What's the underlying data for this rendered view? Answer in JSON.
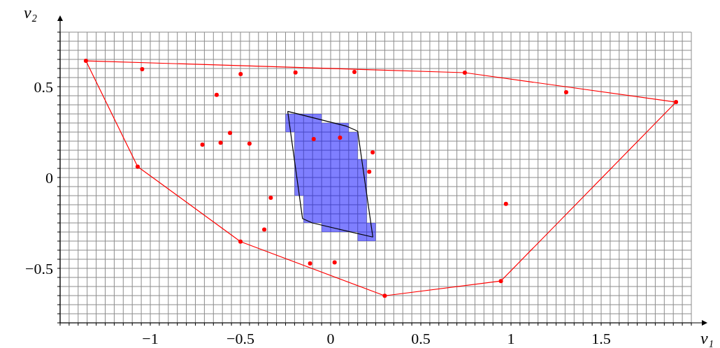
{
  "chart_data": {
    "type": "scatter",
    "xlabel": "v₁",
    "ylabel": "v₂",
    "xlim": [
      -1.5,
      2.0
    ],
    "ylim": [
      -0.8,
      0.8
    ],
    "grid": true,
    "xticks": [
      {
        "value": -1.5,
        "label": null
      },
      {
        "value": -1.45,
        "label": null
      },
      {
        "value": -1.4,
        "label": null
      },
      {
        "value": -1.35,
        "label": null
      },
      {
        "value": -1.3,
        "label": null
      },
      {
        "value": -1.25,
        "label": null
      },
      {
        "value": -1.2,
        "label": null
      },
      {
        "value": -1.15,
        "label": null
      },
      {
        "value": -1.1,
        "label": null
      },
      {
        "value": -1.05,
        "label": null
      },
      {
        "value": -1,
        "label": "−1"
      },
      {
        "value": -0.95,
        "label": null
      },
      {
        "value": -0.9,
        "label": null
      },
      {
        "value": -0.85,
        "label": null
      },
      {
        "value": -0.8,
        "label": null
      },
      {
        "value": -0.75,
        "label": null
      },
      {
        "value": -0.7,
        "label": null
      },
      {
        "value": -0.65,
        "label": null
      },
      {
        "value": -0.6,
        "label": null
      },
      {
        "value": -0.55,
        "label": null
      },
      {
        "value": -0.5,
        "label": "−0.5"
      },
      {
        "value": -0.45,
        "label": null
      },
      {
        "value": -0.4,
        "label": null
      },
      {
        "value": -0.35,
        "label": null
      },
      {
        "value": -0.3,
        "label": null
      },
      {
        "value": -0.25,
        "label": null
      },
      {
        "value": -0.2,
        "label": null
      },
      {
        "value": -0.15,
        "label": null
      },
      {
        "value": -0.1,
        "label": null
      },
      {
        "value": -0.05,
        "label": null
      },
      0,
      {
        "value": 0.05,
        "label": null
      },
      {
        "value": 0.1,
        "label": null
      },
      {
        "value": 0.15,
        "label": null
      },
      {
        "value": 0.2,
        "label": null
      },
      {
        "value": 0.25,
        "label": null
      },
      {
        "value": 0.3,
        "label": null
      },
      {
        "value": 0.35,
        "label": null
      },
      {
        "value": 0.4,
        "label": null
      },
      {
        "value": 0.45,
        "label": null
      },
      0.5,
      {
        "value": 0.55,
        "label": null
      },
      {
        "value": 0.6,
        "label": null
      },
      {
        "value": 0.65,
        "label": null
      },
      {
        "value": 0.7,
        "label": null
      },
      {
        "value": 0.75,
        "label": null
      },
      {
        "value": 0.8,
        "label": null
      },
      {
        "value": 0.85,
        "label": null
      },
      {
        "value": 0.9,
        "label": null
      },
      {
        "value": 0.95,
        "label": null
      },
      1,
      {
        "value": 1.05,
        "label": null
      },
      {
        "value": 1.1,
        "label": null
      },
      {
        "value": 1.15,
        "label": null
      },
      {
        "value": 1.2,
        "label": null
      },
      {
        "value": 1.25,
        "label": null
      },
      {
        "value": 1.3,
        "label": null
      },
      {
        "value": 1.35,
        "label": null
      },
      {
        "value": 1.4,
        "label": null
      },
      {
        "value": 1.45,
        "label": null
      },
      1.5,
      {
        "value": 1.55,
        "label": null
      },
      {
        "value": 1.6,
        "label": null
      },
      {
        "value": 1.65,
        "label": null
      },
      {
        "value": 1.7,
        "label": null
      },
      {
        "value": 1.75,
        "label": null
      },
      {
        "value": 1.8,
        "label": null
      },
      {
        "value": 1.85,
        "label": null
      },
      {
        "value": 1.9,
        "label": null
      },
      {
        "value": 1.95,
        "label": null
      },
      {
        "value": 2.0,
        "label": null
      }
    ],
    "yticks": [
      {
        "value": -0.8,
        "label": null
      },
      {
        "value": -0.75,
        "label": null
      },
      {
        "value": -0.7,
        "label": null
      },
      {
        "value": -0.65,
        "label": null
      },
      {
        "value": -0.6,
        "label": null
      },
      {
        "value": -0.55,
        "label": null
      },
      {
        "value": -0.5,
        "label": "−0.5"
      },
      {
        "value": -0.45,
        "label": null
      },
      {
        "value": -0.4,
        "label": null
      },
      {
        "value": -0.35,
        "label": null
      },
      {
        "value": -0.3,
        "label": null
      },
      {
        "value": -0.25,
        "label": null
      },
      {
        "value": -0.2,
        "label": null
      },
      {
        "value": -0.15,
        "label": null
      },
      {
        "value": -0.1,
        "label": null
      },
      {
        "value": -0.05,
        "label": null
      },
      0,
      {
        "value": 0.05,
        "label": null
      },
      {
        "value": 0.1,
        "label": null
      },
      {
        "value": 0.15,
        "label": null
      },
      {
        "value": 0.2,
        "label": null
      },
      {
        "value": 0.25,
        "label": null
      },
      {
        "value": 0.3,
        "label": null
      },
      {
        "value": 0.35,
        "label": null
      },
      {
        "value": 0.4,
        "label": null
      },
      {
        "value": 0.45,
        "label": null
      },
      0.5,
      {
        "value": 0.55,
        "label": null
      },
      {
        "value": 0.6,
        "label": null
      },
      {
        "value": 0.65,
        "label": null
      },
      {
        "value": 0.7,
        "label": null
      },
      {
        "value": 0.75,
        "label": null
      },
      {
        "value": 0.8,
        "label": null
      }
    ],
    "series": [
      {
        "type": "bar",
        "color": "#0000ff",
        "x": [
          -0.225,
          -0.175,
          -0.125,
          -0.075,
          -0.025,
          0.025,
          0.075,
          0.125,
          0.175,
          0.225
        ],
        "base": [
          0.25,
          -0.1,
          -0.25,
          -0.25,
          -0.3,
          -0.3,
          -0.3,
          -0.3,
          -0.35,
          -0.35
        ],
        "values": [
          0.1,
          0.45,
          0.6,
          0.6,
          0.6,
          0.6,
          0.6,
          0.55,
          0.45,
          0.1
        ]
      },
      {
        "type": "line",
        "color": "#ff0000",
        "marker": "none",
        "x": [
          -1.357,
          0.744,
          1.915
        ],
        "values": [
          0.642,
          0.577,
          0.415
        ]
      },
      {
        "type": "line",
        "color": "#ff0000",
        "marker": "none",
        "x": [
          -1.357,
          -1.07,
          -0.5,
          0.3,
          0.944,
          1.915
        ],
        "values": [
          0.642,
          0.06,
          -0.353,
          -0.651,
          -0.57,
          0.415
        ]
      },
      {
        "type": "line",
        "color": "#000000",
        "marker": "none",
        "x": [
          -0.238,
          0.089,
          0.15,
          0.234
        ],
        "values": [
          0.364,
          0.282,
          0.255,
          -0.328
        ]
      },
      {
        "type": "line",
        "color": "#000000",
        "marker": "none",
        "x": [
          -0.238,
          -0.156,
          -0.102,
          0.234
        ],
        "values": [
          0.364,
          -0.226,
          -0.25,
          -0.328
        ]
      },
      {
        "color": "#ff0000",
        "marker": "circle",
        "x": [
          -1.357,
          -1.07,
          -0.5,
          0.3,
          0.944,
          1.915,
          0.744,
          -1.045,
          -0.499,
          -0.195,
          0.132,
          1.306,
          -0.632,
          -0.558,
          -0.711,
          -0.61,
          -0.45,
          -0.094,
          0.052,
          0.233,
          0.214,
          -0.332,
          -0.368,
          -0.114,
          0.022,
          0.972
        ],
        "values": [
          0.642,
          0.06,
          -0.353,
          -0.651,
          -0.57,
          0.415,
          0.577,
          0.596,
          0.569,
          0.578,
          0.581,
          0.469,
          0.455,
          0.245,
          0.181,
          0.191,
          0.187,
          0.212,
          0.219,
          0.138,
          0.032,
          -0.112,
          -0.287,
          -0.473,
          -0.467,
          -0.145
        ]
      }
    ]
  }
}
